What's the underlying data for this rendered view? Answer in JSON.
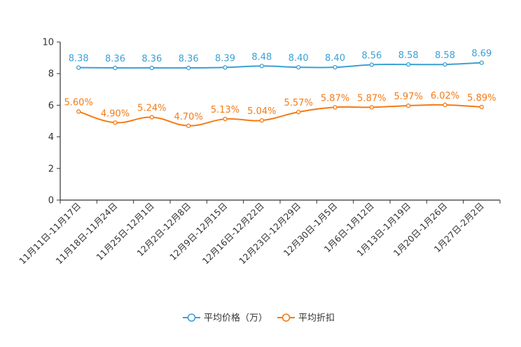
{
  "chart_data": {
    "type": "line",
    "title": "",
    "xlabel": "",
    "ylabel": "",
    "ylim": [
      0,
      10
    ],
    "yticks": [
      0,
      2,
      4,
      6,
      8,
      10
    ],
    "grid": false,
    "legend_position": "bottom-center",
    "categories": [
      "11月11日-11月17日",
      "11月18日-11月24日",
      "11月25日-12月1日",
      "12月2日-12月8日",
      "12月9日-12月15日",
      "12月16日-12月22日",
      "12月23日-12月29日",
      "12月30日-1月5日",
      "1月6日-1月12日",
      "1月13日-1月19日",
      "1月20日-1月26日",
      "1月27日-2月2日"
    ],
    "series": [
      {
        "name": "平均价格（万）",
        "color": "#3ba0d4",
        "values": [
          8.38,
          8.36,
          8.36,
          8.36,
          8.39,
          8.48,
          8.4,
          8.4,
          8.56,
          8.58,
          8.58,
          8.69
        ],
        "labels": [
          "8.38",
          "8.36",
          "8.36",
          "8.36",
          "8.39",
          "8.48",
          "8.40",
          "8.40",
          "8.56",
          "8.58",
          "8.58",
          "8.69"
        ]
      },
      {
        "name": "平均折扣",
        "color": "#f57a14",
        "values": [
          5.6,
          4.9,
          5.24,
          4.7,
          5.13,
          5.04,
          5.57,
          5.87,
          5.87,
          5.97,
          6.02,
          5.89
        ],
        "labels": [
          "5.60%",
          "4.90%",
          "5.24%",
          "4.70%",
          "5.13%",
          "5.04%",
          "5.57%",
          "5.87%",
          "5.87%",
          "5.97%",
          "6.02%",
          "5.89%"
        ]
      }
    ]
  }
}
